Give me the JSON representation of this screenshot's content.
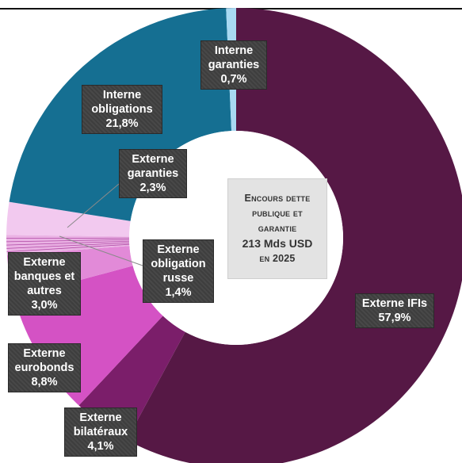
{
  "chart_data": {
    "type": "pie",
    "donut": true,
    "center_label": {
      "line1": "Encours dette",
      "line2": "publique et",
      "line3": "garantie",
      "line4": "213 Mds USD",
      "line5": "en 2025"
    },
    "slices": [
      {
        "name_line1": "Externe IFIs",
        "name_line2": "",
        "value": 57.9,
        "value_label": "57,9%",
        "color": "#561845"
      },
      {
        "name_line1": "Externe",
        "name_line2": "bilatéraux",
        "value": 4.1,
        "value_label": "4,1%",
        "color": "#7b1e6a"
      },
      {
        "name_line1": "Externe",
        "name_line2": "eurobonds",
        "value": 8.8,
        "value_label": "8,8%",
        "color": "#d452c4"
      },
      {
        "name_line1": "Externe",
        "name_line2": "banques et autres",
        "value": 3.0,
        "value_label": "3,0%",
        "color": "#e28ad8"
      },
      {
        "name_line1": "Externe",
        "name_line2": "obligation russe",
        "value": 1.4,
        "value_label": "1,4%",
        "color": "#eab2e4"
      },
      {
        "name_line1": "Externe",
        "name_line2": "garanties",
        "value": 2.3,
        "value_label": "2,3%",
        "color": "#f2c9ef"
      },
      {
        "name_line1": "Interne",
        "name_line2": "obligations",
        "value": 21.8,
        "value_label": "21,8%",
        "color": "#156f92"
      },
      {
        "name_line1": "Interne",
        "name_line2": "garanties",
        "value": 0.7,
        "value_label": "0,7%",
        "color": "#a8d9f2"
      }
    ]
  }
}
